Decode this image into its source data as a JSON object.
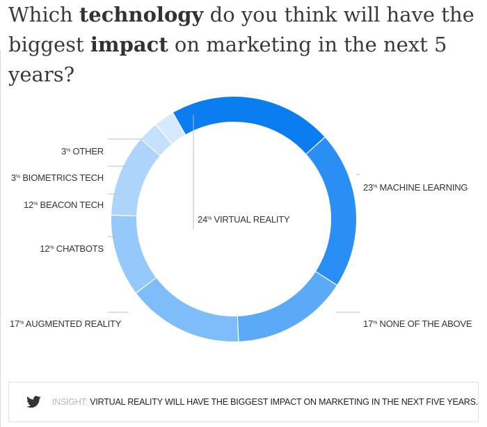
{
  "header": {
    "title_parts": [
      {
        "text": "Which ",
        "bold": false
      },
      {
        "text": "technology",
        "bold": true
      },
      {
        "text": " do you think will have the biggest ",
        "bold": false
      },
      {
        "text": "impact",
        "bold": true
      },
      {
        "text": " on marketing in the next 5 years?",
        "bold": false
      }
    ]
  },
  "chart_data": {
    "type": "pie",
    "style": "donut",
    "percent_suffix": "%",
    "slices": [
      {
        "label": "VIRTUAL REALITY",
        "value": 24,
        "color": "#0a7ef0"
      },
      {
        "label": "MACHINE LEARNING",
        "value": 23,
        "color": "#2a8ff5"
      },
      {
        "label": "NONE OF THE ABOVE",
        "value": 17,
        "color": "#5aaaf8"
      },
      {
        "label": "AUGMENTED REALITY",
        "value": 17,
        "color": "#7ebcfa"
      },
      {
        "label": "CHATBOTS",
        "value": 12,
        "color": "#96c9fb"
      },
      {
        "label": "BEACON TECH",
        "value": 12,
        "color": "#add5fc"
      },
      {
        "label": "BIOMETRICS TECH",
        "value": 3,
        "color": "#c3e0fd"
      },
      {
        "label": "OTHER",
        "value": 3,
        "color": "#d6eafe"
      }
    ]
  },
  "insight": {
    "icon": "twitter-bird-icon",
    "prefix": "INSIGHT:",
    "text": "VIRTUAL REALITY WILL HAVE THE BIGGEST IMPACT ON MARKETING IN THE NEXT FIVE YEARS."
  }
}
